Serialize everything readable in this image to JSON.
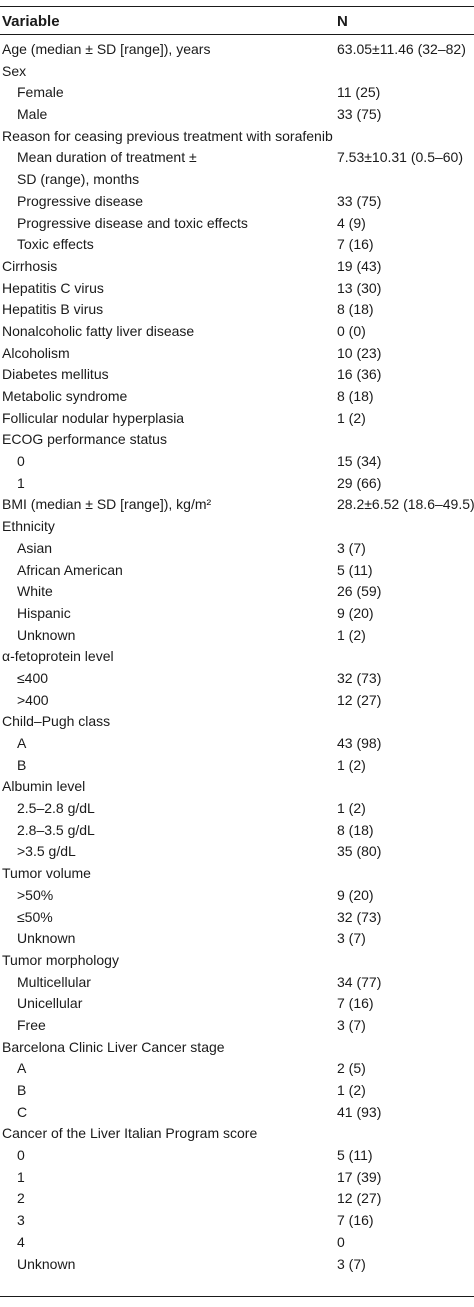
{
  "header": {
    "variable": "Variable",
    "n": "N"
  },
  "rows": [
    {
      "label": "Age (median ± SD [range]), years",
      "value": "63.05±11.46 (32–82)",
      "indent": 0
    },
    {
      "label": "Sex",
      "value": "",
      "indent": 0
    },
    {
      "label": "Female",
      "value": "11 (25)",
      "indent": 1
    },
    {
      "label": "Male",
      "value": "33 (75)",
      "indent": 1
    },
    {
      "label": "Reason for ceasing previous treatment with sorafenib",
      "value": "",
      "indent": 0
    },
    {
      "label": "Mean duration of treatment ±",
      "value": "7.53±10.31 (0.5–60)",
      "indent": 1
    },
    {
      "label": "SD (range), months",
      "value": "",
      "indent": 1
    },
    {
      "label": "Progressive disease",
      "value": "33 (75)",
      "indent": 1
    },
    {
      "label": "Progressive disease and toxic effects",
      "value": "4 (9)",
      "indent": 1
    },
    {
      "label": "Toxic effects",
      "value": "7 (16)",
      "indent": 1
    },
    {
      "label": "Cirrhosis",
      "value": "19 (43)",
      "indent": 0
    },
    {
      "label": "Hepatitis C virus",
      "value": "13 (30)",
      "indent": 0
    },
    {
      "label": "Hepatitis B virus",
      "value": "8 (18)",
      "indent": 0
    },
    {
      "label": "Nonalcoholic fatty liver disease",
      "value": "0 (0)",
      "indent": 0
    },
    {
      "label": "Alcoholism",
      "value": "10 (23)",
      "indent": 0
    },
    {
      "label": "Diabetes mellitus",
      "value": "16 (36)",
      "indent": 0
    },
    {
      "label": "Metabolic syndrome",
      "value": "8 (18)",
      "indent": 0
    },
    {
      "label": "Follicular nodular hyperplasia",
      "value": "1 (2)",
      "indent": 0
    },
    {
      "label": "ECOG performance status",
      "value": "",
      "indent": 0
    },
    {
      "label": "0",
      "value": "15 (34)",
      "indent": 1
    },
    {
      "label": "1",
      "value": "29 (66)",
      "indent": 1
    },
    {
      "label": "BMI (median ± SD [range]), kg/m²",
      "value": "28.2±6.52 (18.6–49.5)",
      "indent": 0
    },
    {
      "label": "Ethnicity",
      "value": "",
      "indent": 0
    },
    {
      "label": "Asian",
      "value": "3 (7)",
      "indent": 1
    },
    {
      "label": "African American",
      "value": "5 (11)",
      "indent": 1
    },
    {
      "label": "White",
      "value": "26 (59)",
      "indent": 1
    },
    {
      "label": "Hispanic",
      "value": "9 (20)",
      "indent": 1
    },
    {
      "label": "Unknown",
      "value": "1 (2)",
      "indent": 1
    },
    {
      "label": "α-fetoprotein level",
      "value": "",
      "indent": 0
    },
    {
      "label": "≤400",
      "value": "32 (73)",
      "indent": 1
    },
    {
      "label": ">400",
      "value": "12 (27)",
      "indent": 1
    },
    {
      "label": "Child–Pugh class",
      "value": "",
      "indent": 0
    },
    {
      "label": "A",
      "value": "43 (98)",
      "indent": 1
    },
    {
      "label": "B",
      "value": "1 (2)",
      "indent": 1
    },
    {
      "label": "Albumin level",
      "value": "",
      "indent": 0
    },
    {
      "label": "2.5–2.8 g/dL",
      "value": "1 (2)",
      "indent": 1
    },
    {
      "label": "2.8–3.5 g/dL",
      "value": "8 (18)",
      "indent": 1
    },
    {
      "label": ">3.5 g/dL",
      "value": "35 (80)",
      "indent": 1
    },
    {
      "label": "Tumor volume",
      "value": "",
      "indent": 0
    },
    {
      "label": ">50%",
      "value": "9 (20)",
      "indent": 1
    },
    {
      "label": "≤50%",
      "value": "32 (73)",
      "indent": 1
    },
    {
      "label": "Unknown",
      "value": "3 (7)",
      "indent": 1
    },
    {
      "label": "Tumor morphology",
      "value": "",
      "indent": 0
    },
    {
      "label": "Multicellular",
      "value": "34 (77)",
      "indent": 1
    },
    {
      "label": "Unicellular",
      "value": "7 (16)",
      "indent": 1
    },
    {
      "label": "Free",
      "value": "3 (7)",
      "indent": 1
    },
    {
      "label": "Barcelona Clinic Liver Cancer stage",
      "value": "",
      "indent": 0
    },
    {
      "label": "A",
      "value": "2 (5)",
      "indent": 1
    },
    {
      "label": "B",
      "value": "1 (2)",
      "indent": 1
    },
    {
      "label": "C",
      "value": "41 (93)",
      "indent": 1
    },
    {
      "label": "Cancer of the Liver Italian Program score",
      "value": "",
      "indent": 0
    },
    {
      "label": "0",
      "value": "5 (11)",
      "indent": 1
    },
    {
      "label": "1",
      "value": "17 (39)",
      "indent": 1
    },
    {
      "label": "2",
      "value": "12 (27)",
      "indent": 1
    },
    {
      "label": "3",
      "value": "7 (16)",
      "indent": 1
    },
    {
      "label": "4",
      "value": "0",
      "indent": 1
    },
    {
      "label": "Unknown",
      "value": "3 (7)",
      "indent": 1
    }
  ]
}
